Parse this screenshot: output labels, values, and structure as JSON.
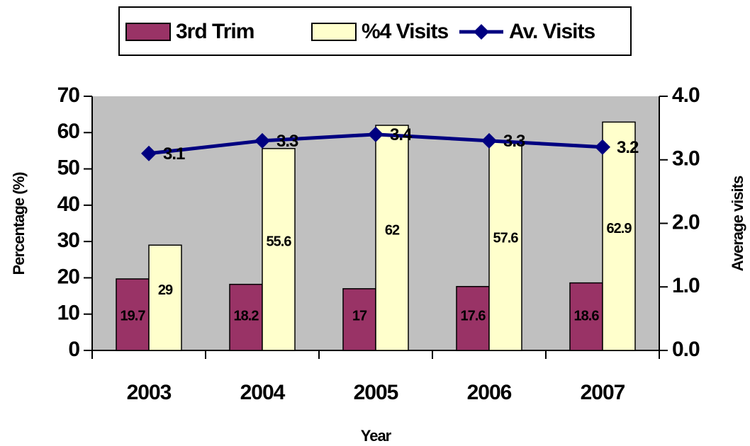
{
  "chart_data": {
    "type": "bar_line",
    "x_label": "Year",
    "y_label": "Percentage (%)",
    "y2_label": "Average visits",
    "categories": [
      "2003",
      "2004",
      "2005",
      "2006",
      "2007"
    ],
    "series": [
      {
        "name": "3rd Trim",
        "color": "#993366",
        "values": [
          19.7,
          18.2,
          17,
          17.6,
          18.6
        ]
      },
      {
        "name": "%4 Visits",
        "color": "#ffffcc",
        "values": [
          29,
          55.6,
          62,
          57.6,
          62.9
        ]
      },
      {
        "name": "Av. Visits",
        "color": "#000080",
        "axis": "y2",
        "values": [
          3.1,
          3.3,
          3.4,
          3.3,
          3.2
        ]
      }
    ],
    "ylim": [
      0,
      70
    ],
    "yticks": [
      0,
      10,
      20,
      30,
      40,
      50,
      60,
      70
    ],
    "y2lim": [
      0,
      4
    ],
    "y2ticks": [
      {
        "value": 0,
        "label": "0.0"
      },
      {
        "value": 1,
        "label": "1.0"
      },
      {
        "value": 2,
        "label": "2.0"
      },
      {
        "value": 3,
        "label": "3.0"
      },
      {
        "value": 4,
        "label": "4.0"
      }
    ],
    "plot_background": "#c0c0c0",
    "legend": "top"
  }
}
